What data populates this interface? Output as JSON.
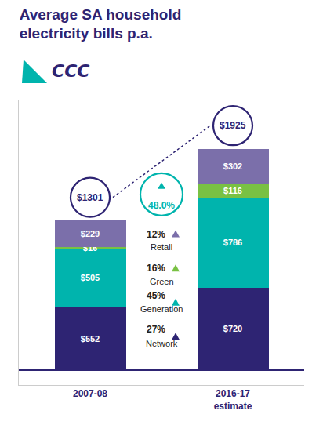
{
  "chart_data": {
    "type": "bar",
    "title": "Average SA household\nelectricity bills p.a.",
    "color": "#2e2473",
    "categories": [
      "2007-08",
      "2016-17\nestimate"
    ],
    "series": [
      {
        "name": "Network",
        "color": "#2e2473",
        "values": [
          552,
          720
        ],
        "value_labels": [
          "$552",
          "$720"
        ],
        "share": {
          "value": 27,
          "label": "27%"
        }
      },
      {
        "name": "Generation",
        "color": "#00b4ad",
        "values": [
          505,
          786
        ],
        "value_labels": [
          "$505",
          "$786"
        ],
        "share": {
          "value": 45,
          "label": "45%"
        }
      },
      {
        "name": "Green",
        "color": "#79c143",
        "values": [
          16,
          116
        ],
        "value_labels": [
          "$16",
          "$116"
        ],
        "share": {
          "value": 16,
          "label": "16%"
        }
      },
      {
        "name": "Retail",
        "color": "#7b6faa",
        "values": [
          229,
          302
        ],
        "value_labels": [
          "$229",
          "$302"
        ],
        "share": {
          "value": 12,
          "label": "12%"
        }
      }
    ],
    "totals": {
      "values": [
        1301,
        1925
      ],
      "value_labels": [
        "$1301",
        "$1925"
      ]
    },
    "change": {
      "value": 48.0,
      "label": "48.0%",
      "color": "#00b4ad"
    },
    "logo": {
      "text": "CCC",
      "color": "#00b4ad"
    },
    "ylim": [
      -130,
      2350
    ],
    "stacked": true,
    "data_labels": true,
    "tick_labels": "x",
    "grid": false
  }
}
